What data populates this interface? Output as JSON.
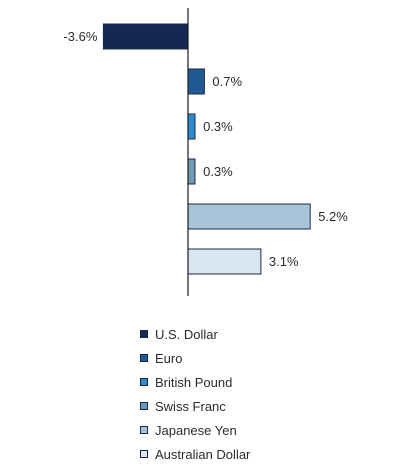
{
  "chart_data": {
    "type": "bar",
    "orientation": "horizontal",
    "categories": [
      "U.S. Dollar",
      "Euro",
      "British Pound",
      "Swiss Franc",
      "Japanese Yen",
      "Australian Dollar"
    ],
    "values": [
      -3.6,
      0.7,
      0.3,
      0.3,
      5.2,
      3.1
    ],
    "value_labels": [
      "-3.6%",
      "0.7%",
      "0.3%",
      "0.3%",
      "5.2%",
      "3.1%"
    ],
    "colors": [
      "#14294f",
      "#1f5a97",
      "#2e8ccb",
      "#6f9bb6",
      "#a7c4d8",
      "#d9e6ef"
    ],
    "xlim": [
      -3.6,
      5.6
    ],
    "grid": false,
    "legend_position": "bottom",
    "title": "",
    "xlabel": "",
    "ylabel": ""
  }
}
